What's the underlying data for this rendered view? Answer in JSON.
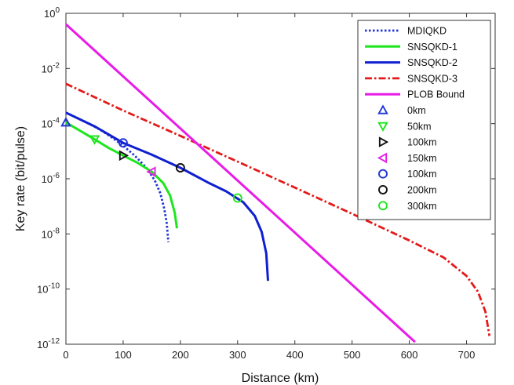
{
  "chart_data": {
    "type": "line",
    "title": "",
    "xlabel": "Distance (km)",
    "ylabel": "Key rate (bit/pulse)",
    "xlim": [
      0,
      750
    ],
    "ylim_log10": [
      -12,
      0
    ],
    "x_ticks": [
      0,
      100,
      200,
      300,
      400,
      500,
      600,
      700
    ],
    "y_ticks": [
      {
        "exp": 0,
        "base": "10",
        "sup": "0"
      },
      {
        "exp": -2,
        "base": "10",
        "sup": "-2"
      },
      {
        "exp": -4,
        "base": "10",
        "sup": "-4"
      },
      {
        "exp": -6,
        "base": "10",
        "sup": "-6"
      },
      {
        "exp": -8,
        "base": "10",
        "sup": "-8"
      },
      {
        "exp": -10,
        "base": "10",
        "sup": "-10"
      },
      {
        "exp": -12,
        "base": "10",
        "sup": "-12"
      }
    ],
    "grid": false,
    "legend_position": "top-right",
    "series": [
      {
        "name": "MDIQKD",
        "color": "#1f35d6",
        "dash": "dotted",
        "points": [
          [
            0,
            0.00025
          ],
          [
            20,
            0.00016
          ],
          [
            40,
            0.0001
          ],
          [
            60,
            6e-05
          ],
          [
            80,
            3.2e-05
          ],
          [
            100,
            1.6e-05
          ],
          [
            120,
            7e-06
          ],
          [
            140,
            2.6e-06
          ],
          [
            155,
            9e-07
          ],
          [
            165,
            3e-07
          ],
          [
            172,
            8e-08
          ],
          [
            176,
            2.5e-08
          ],
          [
            179,
            5e-09
          ]
        ]
      },
      {
        "name": "SNSQKD-1",
        "color": "#1ee61e",
        "dash": "solid",
        "points": [
          [
            0,
            0.00011
          ],
          [
            25,
            5.5e-05
          ],
          [
            50,
            2.7e-05
          ],
          [
            75,
            1.3e-05
          ],
          [
            100,
            7e-06
          ],
          [
            125,
            3.8e-06
          ],
          [
            150,
            1.8e-06
          ],
          [
            170,
            7e-07
          ],
          [
            182,
            2.5e-07
          ],
          [
            190,
            6e-08
          ],
          [
            193,
            2.2e-08
          ],
          [
            194,
            1.6e-08
          ]
        ]
      },
      {
        "name": "SNSQKD-2",
        "color": "#1020d0",
        "dash": "solid",
        "points": [
          [
            0,
            0.00025
          ],
          [
            50,
            8e-05
          ],
          [
            100,
            2e-05
          ],
          [
            150,
            7.5e-06
          ],
          [
            200,
            2.5e-06
          ],
          [
            250,
            7e-07
          ],
          [
            280,
            3.5e-07
          ],
          [
            310,
            1.4e-07
          ],
          [
            330,
            4.5e-08
          ],
          [
            342,
            1.2e-08
          ],
          [
            350,
            2e-09
          ],
          [
            353,
            2e-10
          ]
        ]
      },
      {
        "name": "SNSQKD-3",
        "color": "#e41a1a",
        "dash": "dashdot",
        "points": [
          [
            0,
            0.0028
          ],
          [
            100,
            0.0003
          ],
          [
            200,
            3.6e-05
          ],
          [
            300,
            4.2e-06
          ],
          [
            400,
            4.8e-07
          ],
          [
            500,
            5.4e-08
          ],
          [
            600,
            5.8e-09
          ],
          [
            660,
            1.4e-09
          ],
          [
            700,
            3e-10
          ],
          [
            720,
            8e-11
          ],
          [
            733,
            1.5e-11
          ],
          [
            740,
            2e-12
          ]
        ]
      },
      {
        "name": "PLOB Bound",
        "color": "#e81be8",
        "dash": "solid",
        "points": [
          [
            0,
            0.4
          ],
          [
            610,
            1.2e-12
          ]
        ]
      }
    ],
    "markers": [
      {
        "name": "0km",
        "shape": "triangle-up",
        "color": "#1f35d6",
        "x": 0,
        "y": 0.00011
      },
      {
        "name": "50km",
        "shape": "triangle-down",
        "color": "#1ee61e",
        "x": 50,
        "y": 2.7e-05
      },
      {
        "name": "100km",
        "shape": "triangle-right",
        "color": "#111111",
        "x": 100,
        "y": 7e-06
      },
      {
        "name": "150km",
        "shape": "triangle-left",
        "color": "#e81be8",
        "x": 150,
        "y": 1.8e-06
      },
      {
        "name": "100km",
        "shape": "circle",
        "color": "#1f35d6",
        "x": 100,
        "y": 2e-05
      },
      {
        "name": "200km",
        "shape": "circle",
        "color": "#111111",
        "x": 200,
        "y": 2.5e-06
      },
      {
        "name": "300km",
        "shape": "circle",
        "color": "#1ee61e",
        "x": 300,
        "y": 2e-07
      }
    ]
  }
}
